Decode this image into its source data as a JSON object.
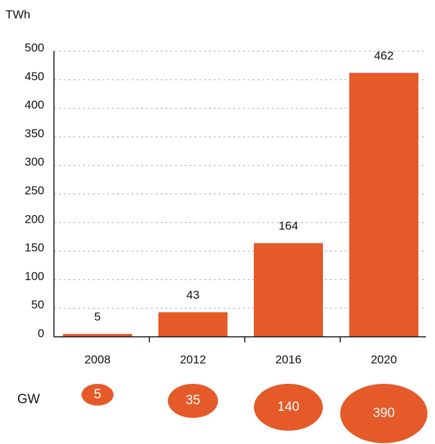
{
  "chart_data": {
    "type": "bar",
    "y_label": "TWh",
    "categories": [
      "2008",
      "2012",
      "2016",
      "2020"
    ],
    "values": [
      5,
      43,
      164,
      462
    ],
    "color": "#e55a28",
    "ylim": [
      0,
      500
    ],
    "yticks": [
      0,
      50,
      100,
      150,
      200,
      250,
      300,
      350,
      400,
      450,
      500
    ],
    "grid": true,
    "bubbles": {
      "label": "GW",
      "values": [
        5,
        35,
        140,
        390
      ],
      "color": "#e55a28"
    }
  }
}
